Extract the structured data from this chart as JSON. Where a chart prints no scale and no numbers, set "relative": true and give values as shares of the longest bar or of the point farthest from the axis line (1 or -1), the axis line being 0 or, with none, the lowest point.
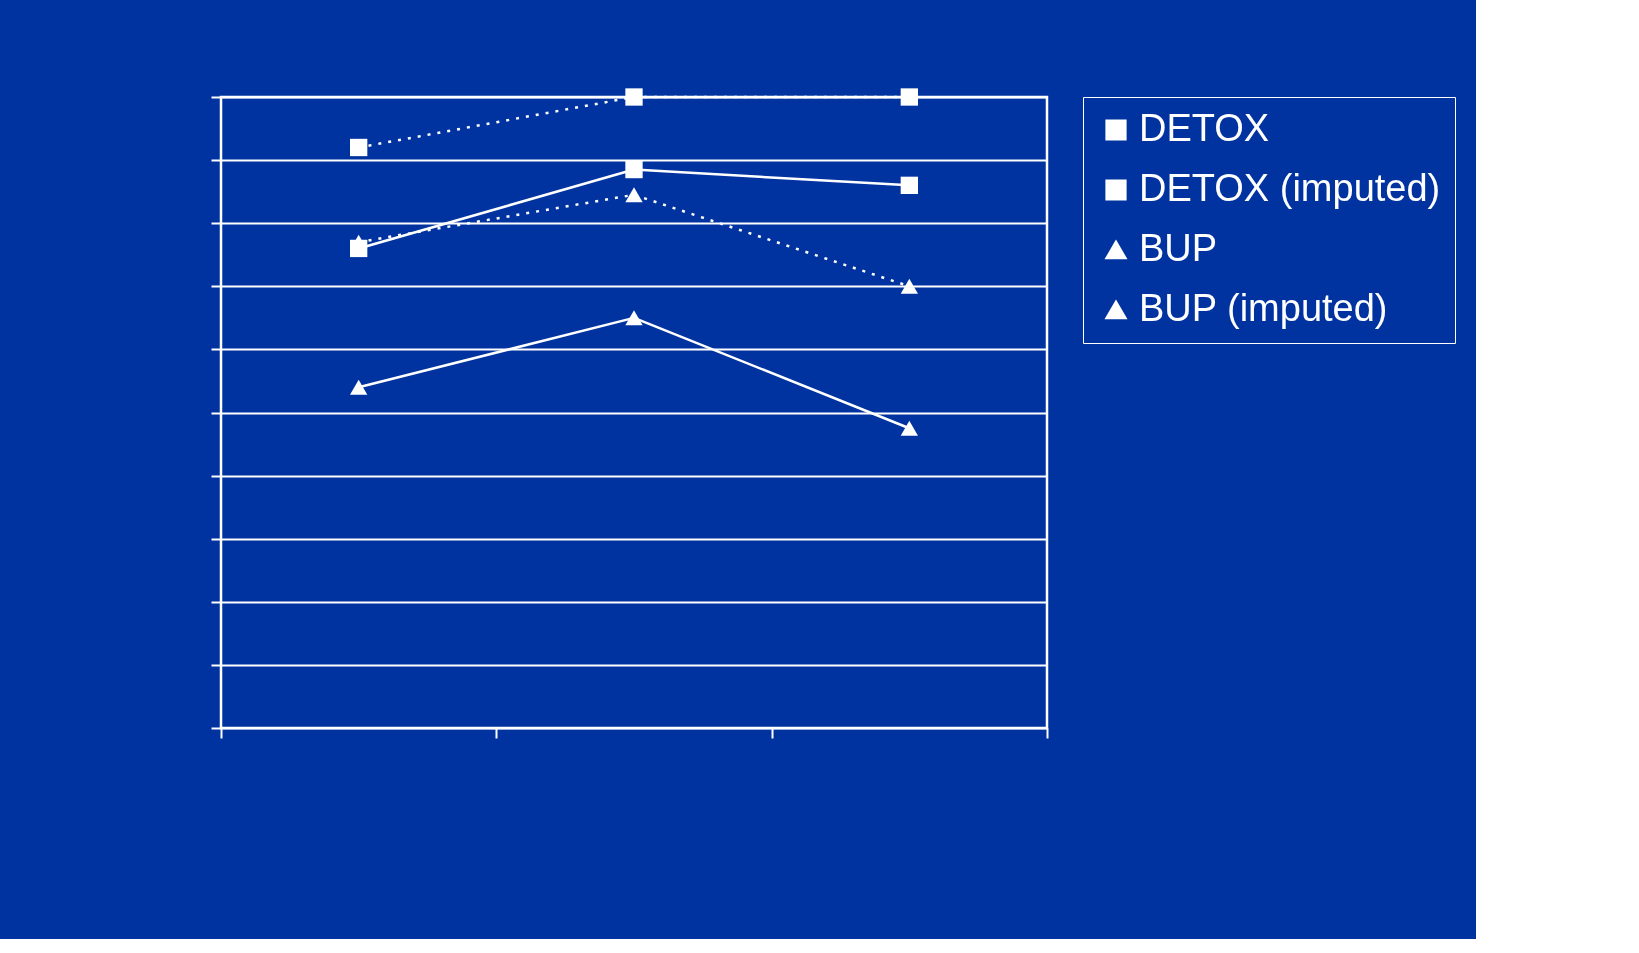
{
  "chart_data": {
    "type": "line",
    "relative": true,
    "categories": [
      null,
      null,
      null
    ],
    "series": [
      {
        "name": "DETOX",
        "color": "#ffffff",
        "marker": "square",
        "line_style": "solid",
        "values": [
          0.76,
          0.885,
          0.86
        ]
      },
      {
        "name": "DETOX (imputed)",
        "color": "#ffffff",
        "marker": "square",
        "line_style": "dotted",
        "values": [
          0.92,
          1.0,
          1.0
        ]
      },
      {
        "name": "BUP",
        "color": "#ffffff",
        "marker": "triangle",
        "line_style": "solid",
        "values": [
          0.54,
          0.65,
          0.475
        ]
      },
      {
        "name": "BUP (imputed)",
        "color": "#ffffff",
        "marker": "triangle",
        "line_style": "dotted",
        "values": [
          0.77,
          0.845,
          0.7
        ]
      }
    ],
    "grid": "y",
    "legend": "right",
    "tick_labels": false
  }
}
